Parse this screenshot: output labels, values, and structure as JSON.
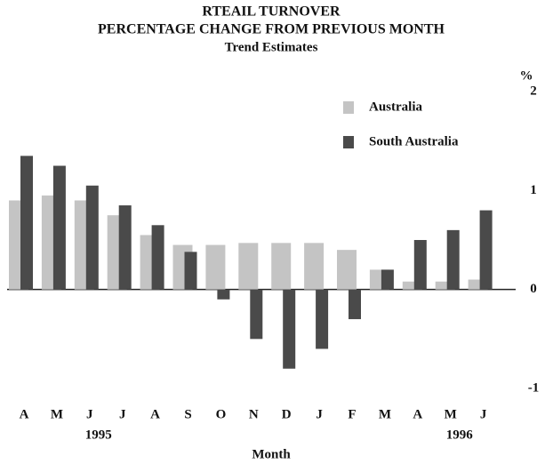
{
  "chart_data": {
    "type": "bar",
    "title": "RTEAIL TURNOVER",
    "subtitle": "PERCENTAGE CHANGE FROM PREVIOUS MONTH",
    "subtitle2": "Trend Estimates",
    "x_label": "Month",
    "y_label": "%",
    "categories": [
      "A",
      "M",
      "J",
      "J",
      "A",
      "S",
      "O",
      "N",
      "D",
      "J",
      "F",
      "M",
      "A",
      "M",
      "J"
    ],
    "year_labels": [
      null,
      null,
      "1995",
      null,
      null,
      null,
      null,
      null,
      null,
      null,
      null,
      null,
      null,
      "1996",
      null
    ],
    "series": [
      {
        "name": "Australia",
        "color": "#c4c4c4",
        "values": [
          0.9,
          0.95,
          0.9,
          0.75,
          0.55,
          0.45,
          0.45,
          0.47,
          0.47,
          0.47,
          0.4,
          0.2,
          0.08,
          0.08,
          0.1
        ]
      },
      {
        "name": "South Australia",
        "color": "#4a4a4a",
        "values": [
          1.35,
          1.25,
          1.05,
          0.85,
          0.65,
          0.38,
          -0.1,
          -0.5,
          -0.8,
          -0.6,
          -0.3,
          0.2,
          0.5,
          0.6,
          0.8
        ]
      }
    ],
    "ylim": [
      -1,
      2
    ],
    "yticks": [
      -1,
      0,
      1,
      2
    ],
    "grid": false,
    "legend": "upper right"
  }
}
